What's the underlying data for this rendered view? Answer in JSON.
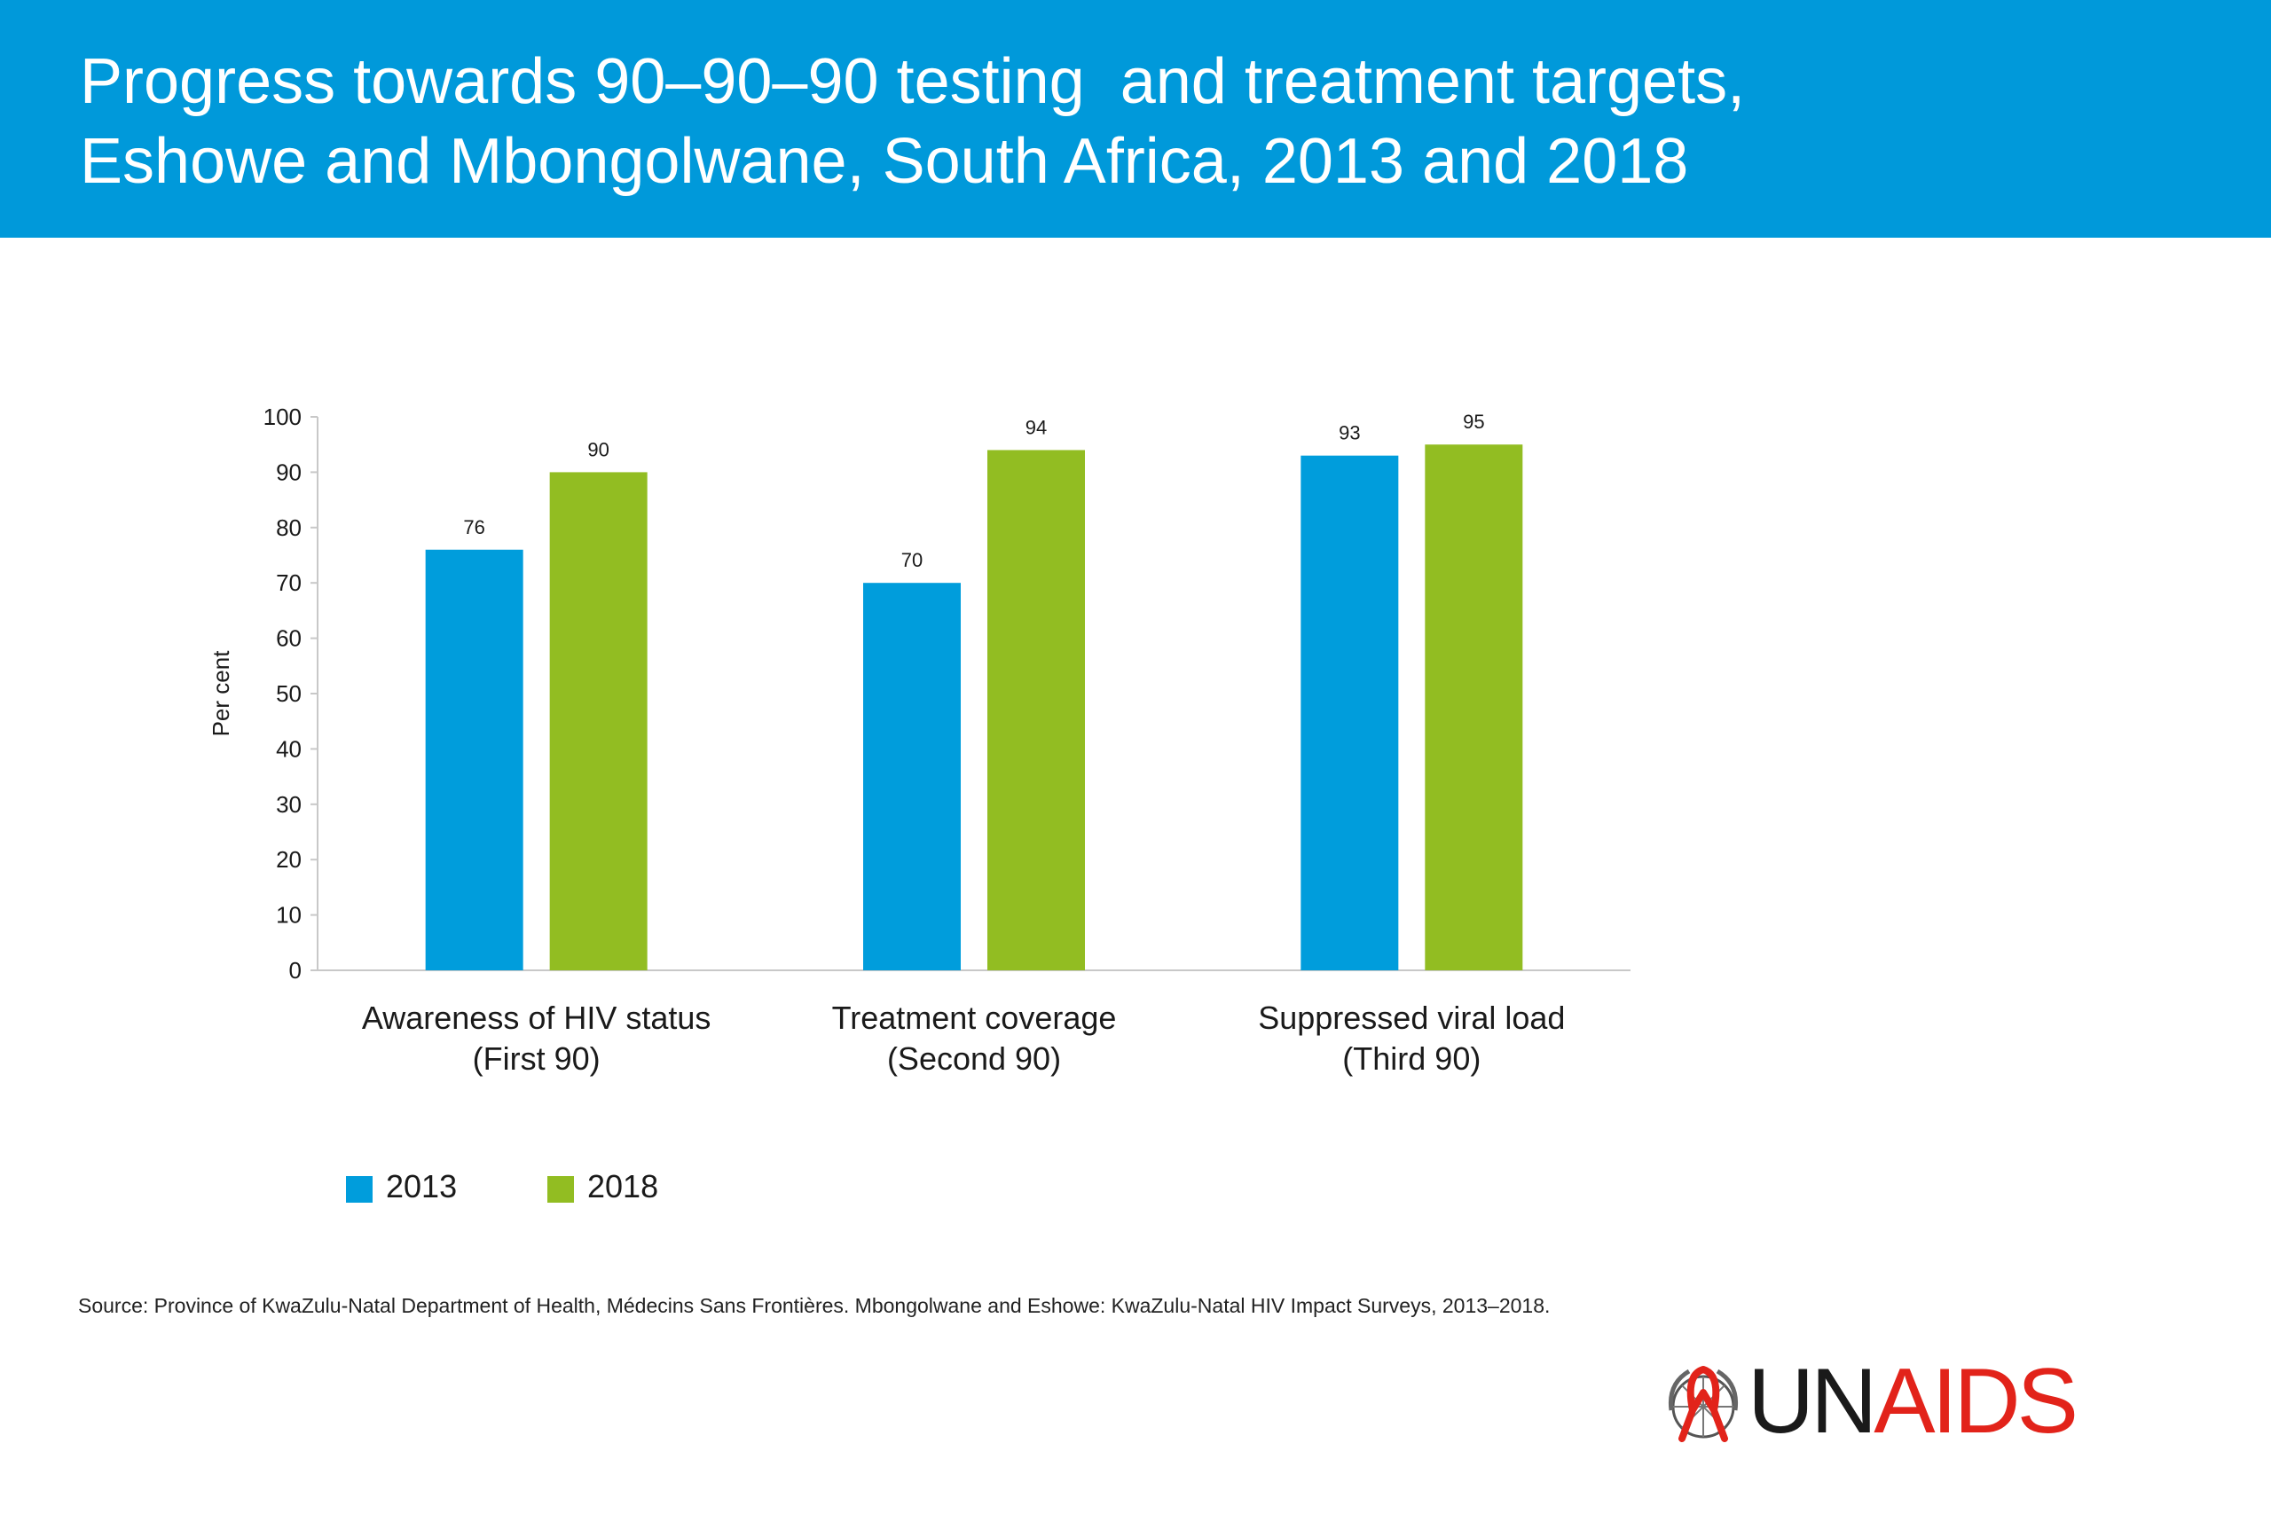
{
  "header": {
    "title_line1": "Progress towards 90–90–90 testing  and treatment targets,",
    "title_line2": "Eshowe and Mbongolwane, South Africa, 2013 and 2018",
    "background": "#0099da"
  },
  "chart_data": {
    "type": "bar",
    "categories": [
      [
        "Awareness of HIV status",
        "(First 90)"
      ],
      [
        "Treatment coverage",
        "(Second 90)"
      ],
      [
        "Suppressed viral  load",
        "(Third 90)"
      ]
    ],
    "series": [
      {
        "name": "2013",
        "values": [
          76,
          70,
          93
        ],
        "color": "#009ddc"
      },
      {
        "name": "2018",
        "values": [
          90,
          94,
          95
        ],
        "color": "#92bd22"
      }
    ],
    "ylabel": "Per cent",
    "xlabel": "",
    "ylim": [
      0,
      100
    ],
    "yticks": [
      0,
      10,
      20,
      30,
      40,
      50,
      60,
      70,
      80,
      90,
      100
    ],
    "grid": false,
    "legend_position": "bottom-left",
    "data_labels": true
  },
  "legend": {
    "items": [
      {
        "label": "2013",
        "color": "#009ddc"
      },
      {
        "label": "2018",
        "color": "#92bd22"
      }
    ]
  },
  "source": {
    "prefix": "Source:",
    "text": " Province of KwaZulu-Natal Department of Health, Médecins Sans Frontières. Mbongolwane and Eshowe: KwaZulu-Natal HIV Impact Surveys, 2013–2018."
  },
  "logo": {
    "text_un": "UN",
    "text_aids": "AIDS",
    "emblem": "un-emblem-red-ribbon-icon"
  }
}
